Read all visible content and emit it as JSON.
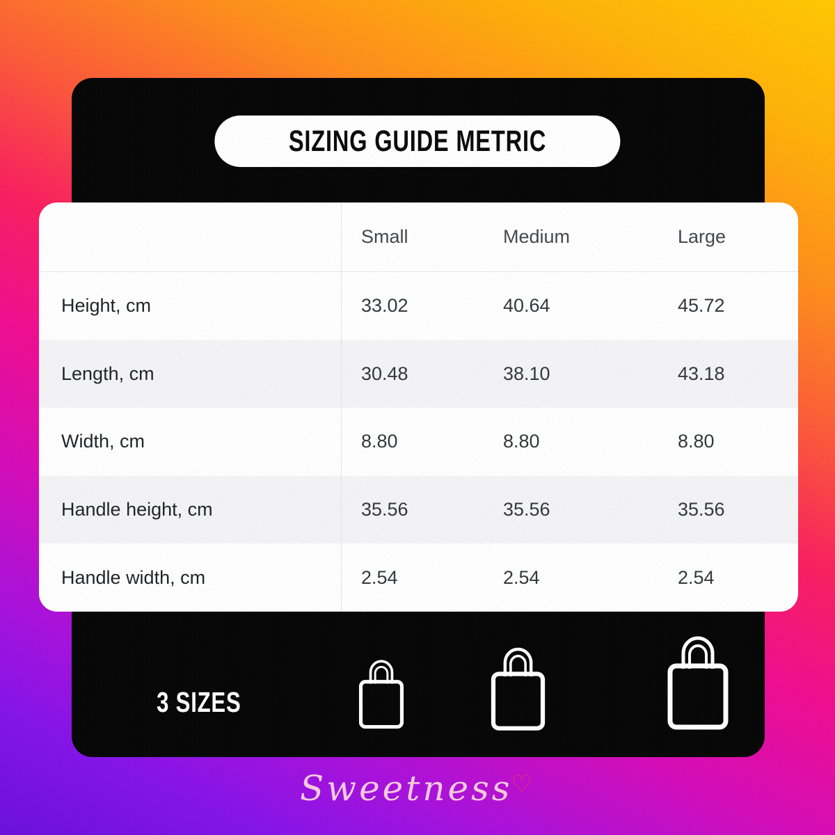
{
  "title": "SIZING GUIDE METRIC",
  "table": {
    "columns": [
      "Small",
      "Medium",
      "Large"
    ],
    "rows": [
      {
        "label": "Height, cm",
        "values": [
          "33.02",
          "40.64",
          "45.72"
        ]
      },
      {
        "label": "Length, cm",
        "values": [
          "30.48",
          "38.10",
          "43.18"
        ]
      },
      {
        "label": "Width, cm",
        "values": [
          "8.80",
          "8.80",
          "8.80"
        ]
      },
      {
        "label": "Handle height, cm",
        "values": [
          "35.56",
          "35.56",
          "35.56"
        ]
      },
      {
        "label": "Handle width, cm",
        "values": [
          "2.54",
          "2.54",
          "2.54"
        ]
      }
    ]
  },
  "footer": {
    "sizes_label": "3 SIZES",
    "bag_icons": [
      "tote-bag-small-icon",
      "tote-bag-medium-icon",
      "tote-bag-large-icon"
    ]
  },
  "brand": {
    "name": "Sweetness",
    "heart": "♡"
  },
  "colors": {
    "gradient_top": "#ffc803",
    "gradient_mid": "#ef0e91",
    "gradient_bottom": "#6c10dc",
    "card_black": "#070707",
    "card_white": "#ffffff",
    "row_stripe": "#f4f4f6",
    "table_text": "#2c3034",
    "brand_pink": "#f6cbdf",
    "heart_pink": "#e93366"
  },
  "chart_data": {
    "type": "table",
    "title": "SIZING GUIDE METRIC",
    "columns": [
      "",
      "Small",
      "Medium",
      "Large"
    ],
    "rows": [
      [
        "Height, cm",
        33.02,
        40.64,
        45.72
      ],
      [
        "Length, cm",
        30.48,
        38.1,
        43.18
      ],
      [
        "Width, cm",
        8.8,
        8.8,
        8.8
      ],
      [
        "Handle height, cm",
        35.56,
        35.56,
        35.56
      ],
      [
        "Handle width, cm",
        2.54,
        2.54,
        2.54
      ]
    ],
    "notes": "3 sizes depicted as small/medium/large tote bag icons"
  }
}
